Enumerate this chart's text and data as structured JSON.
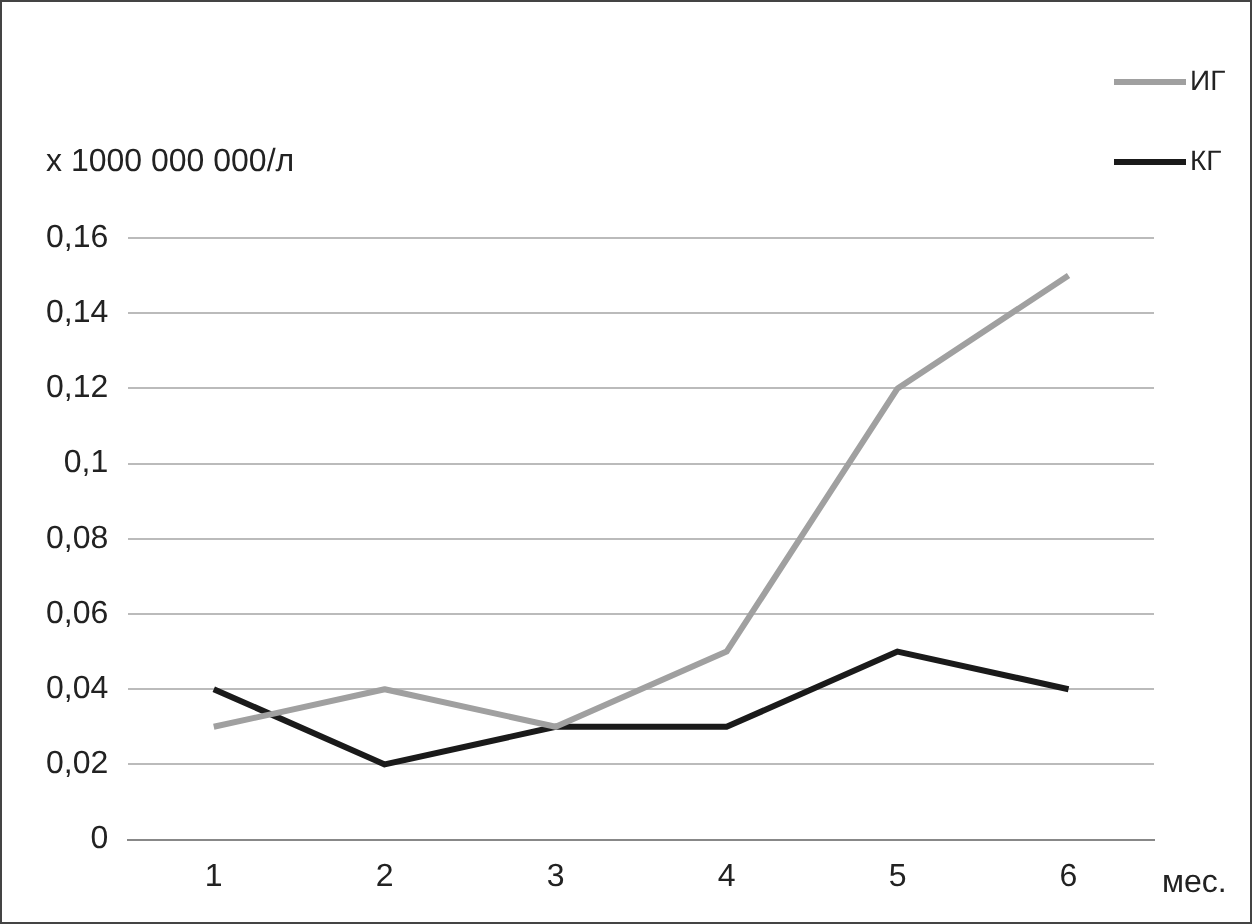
{
  "chart_data": {
    "type": "line",
    "ylabel": "x 1000 000 000/л",
    "xlabel": "мес.",
    "categories": [
      "1",
      "2",
      "3",
      "4",
      "5",
      "6"
    ],
    "series": [
      {
        "name": "ИГ",
        "color": "#a0a0a0",
        "values": [
          0.03,
          0.04,
          0.03,
          0.05,
          0.12,
          0.15
        ]
      },
      {
        "name": "КГ",
        "color": "#1a1a1a",
        "values": [
          0.04,
          0.02,
          0.03,
          0.03,
          0.05,
          0.04
        ]
      }
    ],
    "ylim": [
      0,
      0.16
    ],
    "yticks": [
      0,
      {
        "value": 0.02,
        "label": "0,02"
      },
      {
        "value": 0.04,
        "label": "0,04"
      },
      {
        "value": 0.06,
        "label": "0,06"
      },
      {
        "value": 0.08,
        "label": "0,08"
      },
      {
        "value": 0.1,
        "label": "0,1"
      },
      {
        "value": 0.12,
        "label": "0,12"
      },
      {
        "value": 0.14,
        "label": "0,14"
      },
      {
        "value": 0.16,
        "label": "0,16"
      }
    ],
    "grid": "y",
    "legend": "top right",
    "marker": "none",
    "line_style": "solid"
  }
}
